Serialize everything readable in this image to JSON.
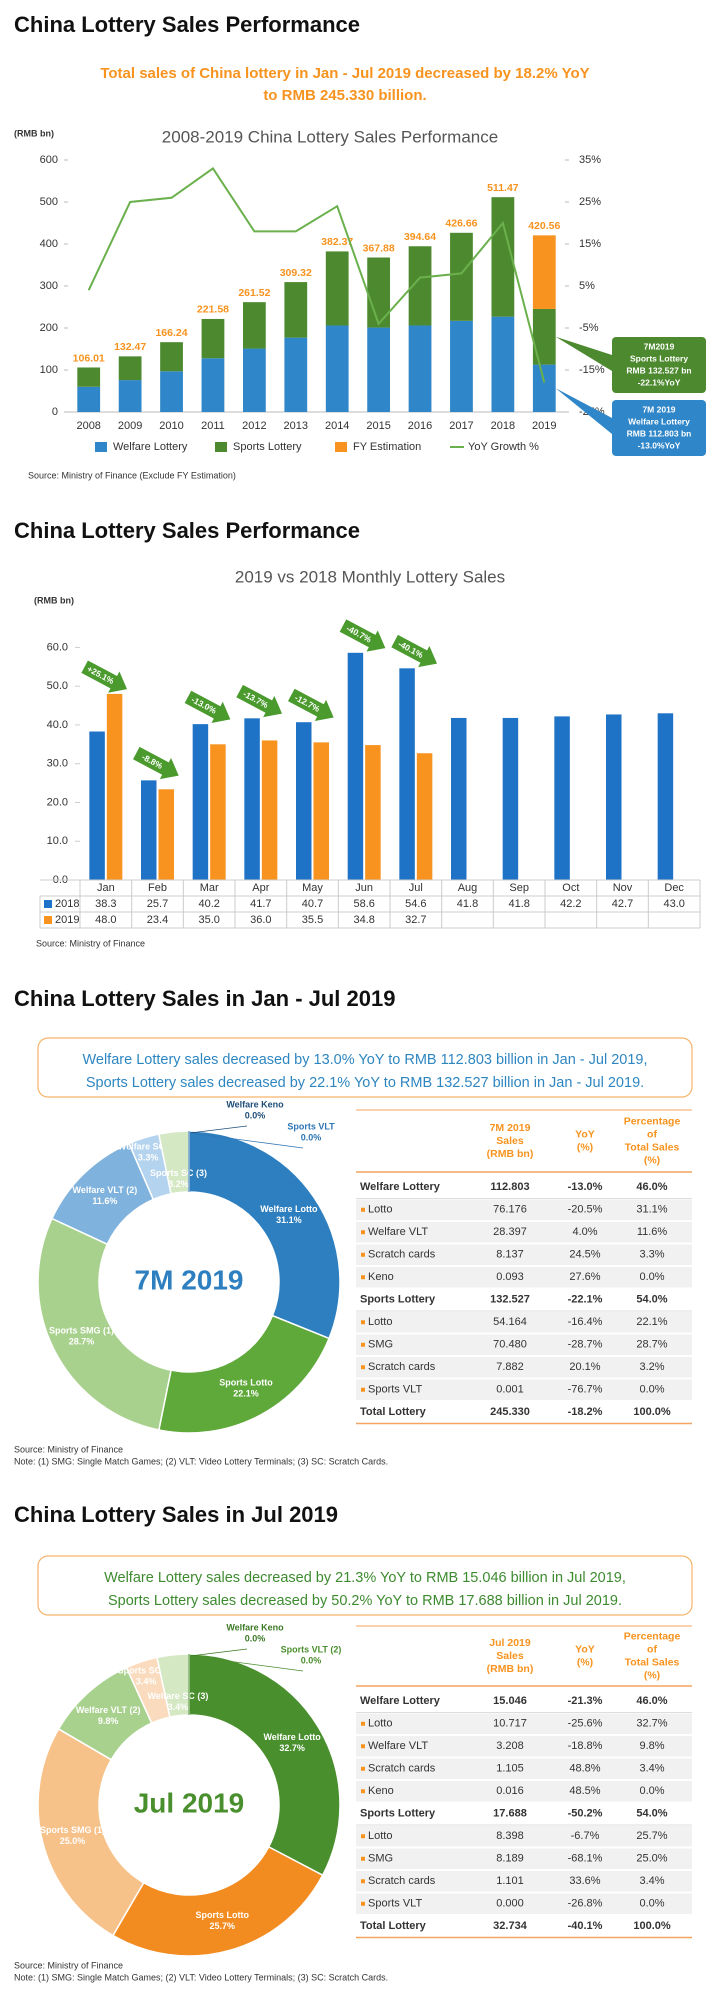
{
  "sections": [
    {
      "title": "China Lottery Sales Performance",
      "subtitle": [
        "Total sales of China lottery in Jan - Jul 2019 decreased by 18.2% YoY",
        "to RMB 245.330 billion."
      ],
      "source": "Source: Ministry of Finance (Exclude FY Estimation)"
    },
    {
      "title": "China Lottery Sales Performance",
      "source": "Source: Ministry of Finance"
    },
    {
      "title": "China Lottery Sales in Jan - Jul 2019",
      "summary": [
        "Welfare Lottery sales decreased by 13.0% YoY to RMB 112.803 billion in Jan - Jul 2019,",
        "Sports Lottery sales decreased by 22.1% YoY to RMB 132.527 billion in Jan - Jul 2019."
      ],
      "source": "Source: Ministry of Finance",
      "note": "Note: (1) SMG: Single Match Games; (2) VLT: Video Lottery Terminals; (3) SC: Scratch Cards."
    },
    {
      "title": "China Lottery Sales in Jul 2019",
      "summary": [
        "Welfare Lottery sales decreased by 21.3% YoY to RMB 15.046 billion in Jul 2019,",
        "Sports Lottery sales decreased by 50.2% YoY to RMB 17.688 billion in Jul 2019."
      ],
      "source": "Source: Ministry of Finance",
      "note": "Note: (1) SMG: Single Match Games; (2) VLT: Video Lottery Terminals; (3) SC: Scratch Cards."
    }
  ],
  "chart_data": [
    {
      "type": "bar",
      "stacked": true,
      "title": "2008-2019 China Lottery Sales Performance",
      "ylabel": "(RMB bn)",
      "categories": [
        "2008",
        "2009",
        "2010",
        "2011",
        "2012",
        "2013",
        "2014",
        "2015",
        "2016",
        "2017",
        "2018",
        "2019"
      ],
      "series": [
        {
          "name": "Welfare Lottery",
          "color": "#2f86c8",
          "values": [
            60,
            76,
            97,
            128,
            151,
            177,
            206,
            201,
            206,
            217,
            227,
            112.803
          ]
        },
        {
          "name": "Sports Lottery",
          "color": "#4d8a2f",
          "values": [
            46.01,
            56.47,
            69.24,
            93.58,
            110.52,
            132.32,
            176.37,
            166.88,
            188.64,
            209.66,
            284.47,
            132.527
          ]
        },
        {
          "name": "FY Estimation",
          "color": "#f7931e",
          "values": [
            null,
            null,
            null,
            null,
            null,
            null,
            null,
            null,
            null,
            null,
            null,
            175.23
          ]
        },
        {
          "name": "YoY Growth %",
          "color": "#6ab04c",
          "type": "line",
          "axis": "y2",
          "values": [
            4,
            25,
            26,
            33,
            18,
            18,
            24,
            -4,
            7,
            8,
            20,
            -18
          ]
        }
      ],
      "totals": [
        106.01,
        132.47,
        166.24,
        221.58,
        261.52,
        309.32,
        382.37,
        367.88,
        394.64,
        426.66,
        511.47,
        420.56
      ],
      "ylim": [
        0,
        600
      ],
      "yticks": [
        0,
        100,
        200,
        300,
        400,
        500,
        600
      ],
      "y2lim": [
        -25,
        35
      ],
      "y2ticks": [
        {
          "value": 35,
          "label": "35%"
        },
        {
          "value": 25,
          "label": "25%"
        },
        {
          "value": 15,
          "label": "15%"
        },
        {
          "value": 5,
          "label": "5%"
        },
        {
          "value": -5,
          "label": "-5%"
        },
        {
          "value": -15,
          "label": "-15%"
        },
        {
          "value": -25,
          "label": "-25%"
        }
      ],
      "annotations": [
        {
          "lines": [
            "7M2019",
            "Sports Lottery",
            "RMB 132.527 bn",
            "-22.1%YoY"
          ],
          "color": "#4d8a2f"
        },
        {
          "lines": [
            "7M 2019",
            "Welfare Lottery",
            "RMB 112.803 bn",
            "-13.0%YoY"
          ],
          "color": "#2f86c8"
        }
      ]
    },
    {
      "type": "bar",
      "title": "2019 vs 2018 Monthly Lottery Sales",
      "ylabel": "(RMB bn)",
      "categories": [
        "Jan",
        "Feb",
        "Mar",
        "Apr",
        "May",
        "Jun",
        "Jul",
        "Aug",
        "Sep",
        "Oct",
        "Nov",
        "Dec"
      ],
      "series": [
        {
          "name": "2018",
          "color": "#1f73c6",
          "values": [
            38.3,
            25.7,
            40.2,
            41.7,
            40.7,
            58.6,
            54.6,
            41.8,
            41.8,
            42.2,
            42.7,
            43.0
          ],
          "value_labels": [
            "38.3",
            "25.7",
            "40.2",
            "41.7",
            "40.7",
            "58.6",
            "54.6",
            "41.8",
            "41.8",
            "42.2",
            "42.7",
            "43.0"
          ]
        },
        {
          "name": "2019",
          "color": "#f7931e",
          "values": [
            48.0,
            23.4,
            35.0,
            36.0,
            35.5,
            34.8,
            32.7,
            null,
            null,
            null,
            null,
            null
          ],
          "value_labels": [
            "48.0",
            "23.4",
            "35.0",
            "36.0",
            "35.5",
            "34.8",
            "32.7",
            null,
            null,
            null,
            null,
            null
          ]
        }
      ],
      "ylim": [
        0,
        65
      ],
      "yticks": [
        {
          "value": 0,
          "label": "0.0"
        },
        {
          "value": 10,
          "label": "10.0"
        },
        {
          "value": 20,
          "label": "20.0"
        },
        {
          "value": 30,
          "label": "30.0"
        },
        {
          "value": 40,
          "label": "40.0"
        },
        {
          "value": 50,
          "label": "50.0"
        },
        {
          "value": 60,
          "label": "60.0"
        }
      ],
      "annotations": [
        "+25.1%",
        "-8.8%",
        "-13.0%",
        "-13.7%",
        "-12.7%",
        "-40.7%",
        "-40.1%"
      ],
      "annotation_color": "#4a9a2d"
    },
    {
      "type": "pie",
      "donut": true,
      "center_label": "7M 2019",
      "center_color": "#2e7fbf",
      "categories": [
        "Welfare Lotto",
        "Sports Lotto",
        "Sports SMG (1)",
        "Welfare VLT (2)",
        "Welfare SC (3)",
        "Sports SC (3)",
        "Welfare Keno",
        "Sports VLT"
      ],
      "values": [
        31.1,
        22.1,
        28.7,
        11.6,
        3.3,
        3.2,
        0.0,
        0.0
      ],
      "value_labels": [
        "31.1%",
        "22.1%",
        "28.7%",
        "11.6%",
        "3.3%",
        "3.2%",
        "0.0%",
        "0.0%"
      ],
      "colors": [
        "#2e7fbf",
        "#5fa83a",
        "#a9d18e",
        "#7fb2dc",
        "#b4d3ee",
        "#d4e8c4",
        "#1f4e79",
        "#2e75b6"
      ]
    },
    {
      "type": "pie",
      "donut": true,
      "center_label": "Jul 2019",
      "center_color": "#4a8f2e",
      "categories": [
        "Welfare Lotto",
        "Sports Lotto",
        "Sports SMG (1)",
        "Welfare VLT (2)",
        "Sports SC (3)",
        "Welfare SC (3)",
        "Welfare Keno",
        "Sports VLT (2)"
      ],
      "values": [
        32.7,
        25.7,
        25.0,
        9.8,
        3.4,
        3.4,
        0.0,
        0.0
      ],
      "value_labels": [
        "32.7%",
        "25.7%",
        "25.0%",
        "9.8%",
        "3.4%",
        "3.4%",
        "0.0%",
        "0.0%"
      ],
      "colors": [
        "#4a8f2e",
        "#f28b20",
        "#f7c18a",
        "#a9d18e",
        "#fadbbd",
        "#d4e8c4",
        "#3d7a26",
        "#4a8f2e"
      ]
    }
  ],
  "tables": [
    {
      "header": [
        [
          "7M 2019",
          "Sales",
          "(RMB bn)"
        ],
        [
          "YoY",
          "(%)"
        ],
        [
          "Percentage",
          "of",
          "Total Sales",
          "(%)"
        ]
      ],
      "groups": [
        {
          "row": [
            "Welfare Lottery",
            "112.803",
            "-13.0%",
            "46.0%"
          ],
          "items": [
            [
              "Lotto",
              "76.176",
              "-20.5%",
              "31.1%"
            ],
            [
              "Welfare VLT",
              "28.397",
              "4.0%",
              "11.6%"
            ],
            [
              "Scratch cards",
              "8.137",
              "24.5%",
              "3.3%"
            ],
            [
              "Keno",
              "0.093",
              "27.6%",
              "0.0%"
            ]
          ]
        },
        {
          "row": [
            "Sports Lottery",
            "132.527",
            "-22.1%",
            "54.0%"
          ],
          "items": [
            [
              "Lotto",
              "54.164",
              "-16.4%",
              "22.1%"
            ],
            [
              "SMG",
              "70.480",
              "-28.7%",
              "28.7%"
            ],
            [
              "Scratch cards",
              "7.882",
              "20.1%",
              "3.2%"
            ],
            [
              "Sports VLT",
              "0.001",
              "-76.7%",
              "0.0%"
            ]
          ]
        }
      ],
      "total": [
        "Total Lottery",
        "245.330",
        "-18.2%",
        "100.0%"
      ]
    },
    {
      "header": [
        [
          "Jul 2019",
          "Sales",
          "(RMB bn)"
        ],
        [
          "YoY",
          "(%)"
        ],
        [
          "Percentage",
          "of",
          "Total Sales",
          "(%)"
        ]
      ],
      "groups": [
        {
          "row": [
            "Welfare Lottery",
            "15.046",
            "-21.3%",
            "46.0%"
          ],
          "items": [
            [
              "Lotto",
              "10.717",
              "-25.6%",
              "32.7%"
            ],
            [
              "Welfare VLT",
              "3.208",
              "-18.8%",
              "9.8%"
            ],
            [
              "Scratch cards",
              "1.105",
              "48.8%",
              "3.4%"
            ],
            [
              "Keno",
              "0.016",
              "48.5%",
              "0.0%"
            ]
          ]
        },
        {
          "row": [
            "Sports Lottery",
            "17.688",
            "-50.2%",
            "54.0%"
          ],
          "items": [
            [
              "Lotto",
              "8.398",
              "-6.7%",
              "25.7%"
            ],
            [
              "SMG",
              "8.189",
              "-68.1%",
              "25.0%"
            ],
            [
              "Scratch cards",
              "1.101",
              "33.6%",
              "3.4%"
            ],
            [
              "Sports VLT",
              "0.000",
              "-26.8%",
              "0.0%"
            ]
          ]
        }
      ],
      "total": [
        "Total Lottery",
        "32.734",
        "-40.1%",
        "100.0%"
      ]
    }
  ]
}
